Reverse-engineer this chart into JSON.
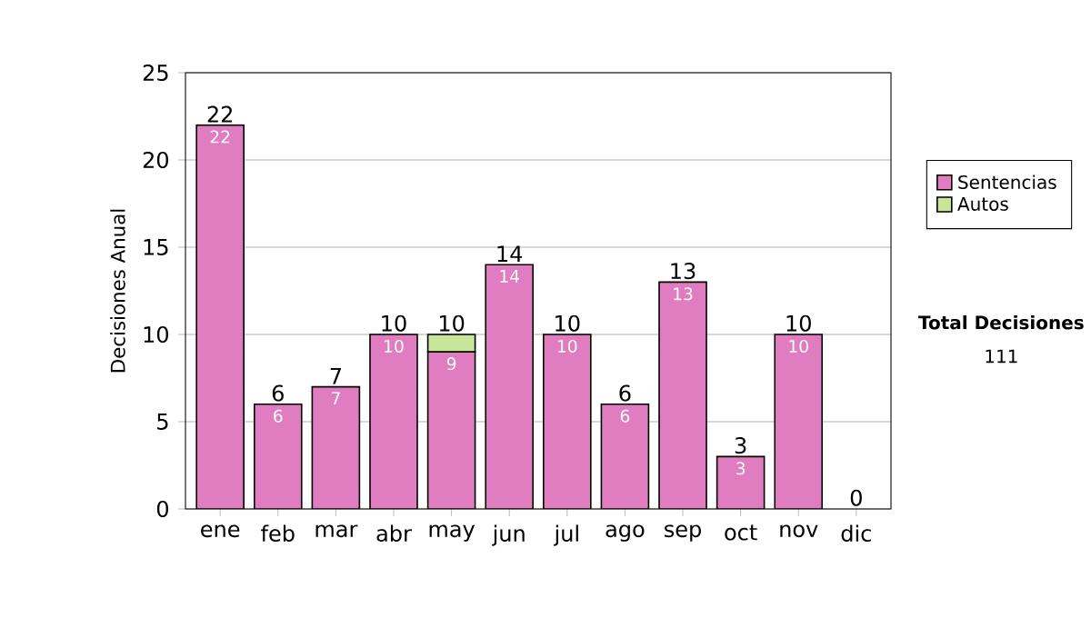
{
  "chart_data": {
    "type": "bar",
    "stacked": true,
    "ylabel": "Decisiones Anual",
    "categories": [
      "ene",
      "feb",
      "mar",
      "abr",
      "may",
      "jun",
      "jul",
      "ago",
      "sep",
      "oct",
      "nov",
      "dic"
    ],
    "series": [
      {
        "name": "Sentencias",
        "color": "#e07cc0",
        "values": [
          22,
          6,
          7,
          10,
          9,
          14,
          10,
          6,
          13,
          3,
          10,
          0
        ],
        "value_labels": [
          "22",
          "6",
          "7",
          "10",
          "9",
          "14",
          "10",
          "6",
          "13",
          "3",
          "10",
          null
        ]
      },
      {
        "name": "Autos",
        "color": "#c8e69a",
        "values": [
          0,
          0,
          0,
          0,
          1,
          0,
          0,
          0,
          0,
          0,
          0,
          0
        ]
      }
    ],
    "totals": [
      "22",
      "6",
      "7",
      "10",
      "10",
      "14",
      "10",
      "6",
      "13",
      "3",
      "10",
      "0"
    ],
    "ylim": [
      0,
      25
    ],
    "yticks": [
      0,
      5,
      10,
      15,
      20,
      25
    ],
    "grid": "y",
    "legend": "right",
    "annotations": [
      "Total Decisiones",
      "111"
    ]
  }
}
